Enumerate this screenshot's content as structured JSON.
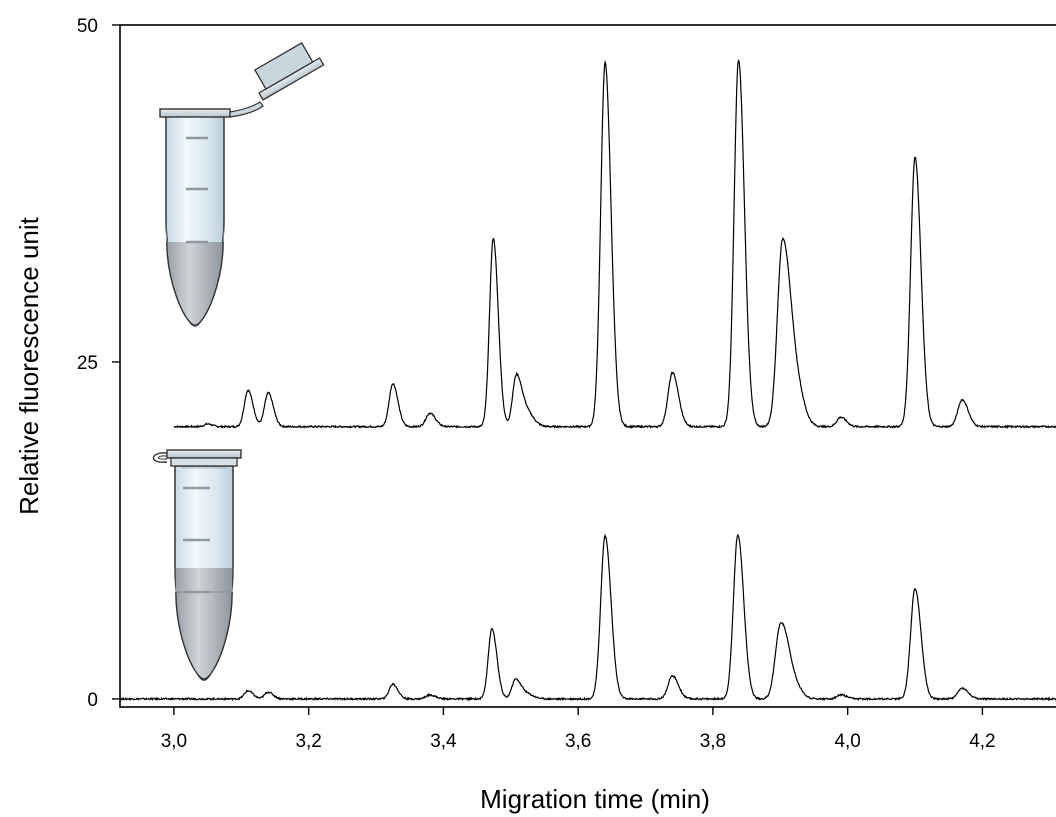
{
  "chart_data": {
    "type": "line",
    "title": "",
    "xlabel": "Migration time (min)",
    "ylabel": "Relative fluorescence unit",
    "xlim": [
      2.92,
      4.33
    ],
    "ylim": [
      -0.6,
      50
    ],
    "x_ticks": [
      3.0,
      3.2,
      3.4,
      3.6,
      3.8,
      4.0,
      4.2
    ],
    "x_tick_labels": [
      "3,0",
      "3,2",
      "3,4",
      "3,6",
      "3,8",
      "4,0",
      "4,2"
    ],
    "y_ticks": [
      0,
      25,
      50
    ],
    "y_tick_labels": [
      "0",
      "25",
      "50"
    ],
    "grid": false,
    "legend": "none",
    "line_color": "#000000",
    "series": [
      {
        "baseline": 20.2,
        "peaks": [
          {
            "x": 3.05,
            "height": 0.2,
            "width": 0.005
          },
          {
            "x": 3.11,
            "height": 2.7,
            "width": 0.0055
          },
          {
            "x": 3.14,
            "height": 2.5,
            "width": 0.0055
          },
          {
            "x": 3.325,
            "height": 3.2,
            "width": 0.0055
          },
          {
            "x": 3.38,
            "height": 1.0,
            "width": 0.006
          },
          {
            "x": 3.474,
            "height": 14.0,
            "width": 0.0055
          },
          {
            "x": 3.508,
            "height": 3.6,
            "width": 0.0055
          },
          {
            "x": 3.522,
            "height": 1.2,
            "width": 0.008
          },
          {
            "x": 3.64,
            "height": 27.0,
            "width": 0.0065
          },
          {
            "x": 3.74,
            "height": 4.0,
            "width": 0.0065
          },
          {
            "x": 3.838,
            "height": 27.2,
            "width": 0.0065
          },
          {
            "x": 3.903,
            "height": 13.2,
            "width": 0.0075
          },
          {
            "x": 3.92,
            "height": 4.0,
            "width": 0.009
          },
          {
            "x": 3.99,
            "height": 0.7,
            "width": 0.006
          },
          {
            "x": 4.1,
            "height": 20.0,
            "width": 0.0065
          },
          {
            "x": 4.17,
            "height": 2.0,
            "width": 0.0065
          }
        ]
      },
      {
        "baseline": 0,
        "peaks": [
          {
            "x": 3.11,
            "height": 0.6,
            "width": 0.0055
          },
          {
            "x": 3.14,
            "height": 0.5,
            "width": 0.0055
          },
          {
            "x": 3.325,
            "height": 1.1,
            "width": 0.0055
          },
          {
            "x": 3.38,
            "height": 0.3,
            "width": 0.006
          },
          {
            "x": 3.472,
            "height": 5.2,
            "width": 0.0055
          },
          {
            "x": 3.507,
            "height": 1.4,
            "width": 0.0055
          },
          {
            "x": 3.522,
            "height": 0.4,
            "width": 0.008
          },
          {
            "x": 3.64,
            "height": 12.1,
            "width": 0.0065
          },
          {
            "x": 3.74,
            "height": 1.7,
            "width": 0.0065
          },
          {
            "x": 3.837,
            "height": 12.2,
            "width": 0.0065
          },
          {
            "x": 3.9,
            "height": 5.2,
            "width": 0.0075
          },
          {
            "x": 3.915,
            "height": 1.6,
            "width": 0.009
          },
          {
            "x": 3.99,
            "height": 0.3,
            "width": 0.006
          },
          {
            "x": 4.1,
            "height": 8.2,
            "width": 0.0065
          },
          {
            "x": 4.17,
            "height": 0.8,
            "width": 0.0065
          }
        ]
      }
    ],
    "illustrations": [
      "open-microcentrifuge-tube-icon",
      "closed-microcentrifuge-tube-icon"
    ]
  }
}
